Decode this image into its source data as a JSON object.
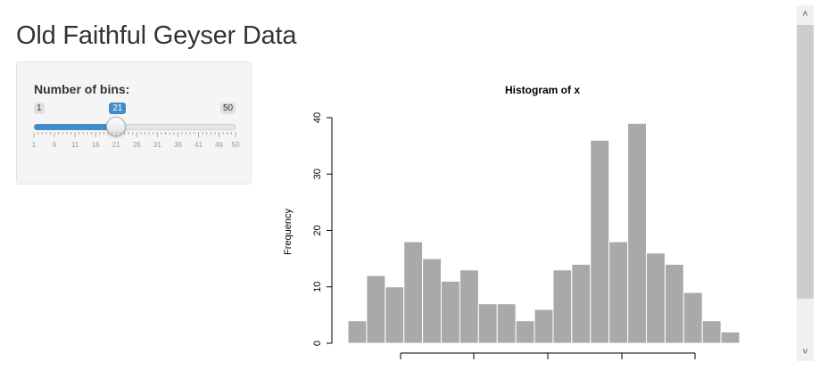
{
  "page": {
    "title": "Old Faithful Geyser Data"
  },
  "sidebar": {
    "slider": {
      "label": "Number of bins:",
      "min": 1,
      "max": 50,
      "value": 21,
      "min_label": "1",
      "max_label": "50",
      "value_label": "21",
      "tick_labels": [
        "1",
        "6",
        "11",
        "16",
        "21",
        "26",
        "31",
        "36",
        "41",
        "46",
        "50"
      ],
      "accent_color": "#428bca"
    }
  },
  "chart_data": {
    "type": "bar",
    "title": "Histogram of x",
    "ylabel": "Frequency",
    "xlabel": "",
    "ylim": [
      0,
      40
    ],
    "yticks": [
      "0",
      "10",
      "20",
      "30",
      "40"
    ],
    "values": [
      4,
      12,
      10,
      18,
      15,
      11,
      13,
      7,
      7,
      4,
      6,
      13,
      14,
      36,
      18,
      39,
      16,
      14,
      9,
      4,
      2
    ],
    "bar_color": "#a9a9a9"
  },
  "scrollbar": {
    "up_icon": "chevron-up-icon",
    "down_icon": "chevron-down-icon"
  }
}
